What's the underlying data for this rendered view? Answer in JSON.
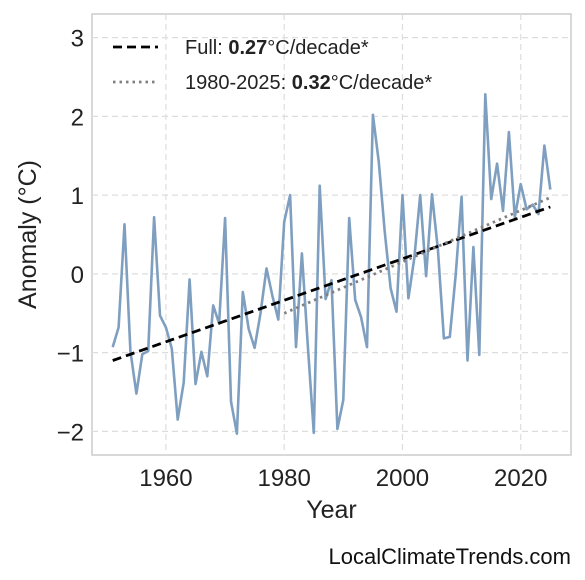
{
  "chart_data": {
    "type": "line",
    "xlabel": "Year",
    "ylabel": "Anomaly (°C)",
    "xlim": [
      1947.5,
      2028.5
    ],
    "ylim": [
      -2.3,
      3.3
    ],
    "xticks": [
      1960,
      1980,
      2000,
      2020
    ],
    "yticks": [
      -2,
      -1,
      0,
      1,
      2,
      3
    ],
    "ytick_labels": [
      "−2",
      "−1",
      "0",
      "1",
      "2",
      "3"
    ],
    "grid": true,
    "legend_position": "top-left",
    "series": [
      {
        "style": "solid",
        "color": "#7f9fc0",
        "x": [
          1951,
          1952,
          1953,
          1954,
          1955,
          1956,
          1957,
          1958,
          1959,
          1960,
          1961,
          1962,
          1963,
          1964,
          1965,
          1966,
          1967,
          1968,
          1969,
          1970,
          1971,
          1972,
          1973,
          1974,
          1975,
          1976,
          1977,
          1978,
          1979,
          1980,
          1981,
          1982,
          1983,
          1984,
          1985,
          1986,
          1987,
          1988,
          1989,
          1990,
          1991,
          1992,
          1993,
          1994,
          1995,
          1996,
          1997,
          1998,
          1999,
          2000,
          2001,
          2002,
          2003,
          2004,
          2005,
          2006,
          2007,
          2008,
          2009,
          2010,
          2011,
          2012,
          2013,
          2014,
          2015,
          2016,
          2017,
          2018,
          2019,
          2020,
          2021,
          2022,
          2023,
          2024,
          2025
        ],
        "y": [
          -0.93,
          -0.68,
          0.63,
          -0.98,
          -1.52,
          -1.02,
          -0.98,
          0.72,
          -0.53,
          -0.68,
          -0.95,
          -1.85,
          -1.38,
          -0.07,
          -1.4,
          -0.99,
          -1.3,
          -0.4,
          -0.63,
          0.71,
          -1.62,
          -2.03,
          -0.23,
          -0.7,
          -0.94,
          -0.5,
          0.07,
          -0.28,
          -0.58,
          0.66,
          1.0,
          -0.93,
          0.26,
          -0.91,
          -2.02,
          1.12,
          -0.32,
          -0.08,
          -1.97,
          -1.6,
          0.71,
          -0.33,
          -0.55,
          -0.93,
          2.02,
          1.42,
          0.54,
          -0.18,
          -0.48,
          1.0,
          -0.31,
          0.2,
          1.0,
          -0.03,
          1.01,
          0.31,
          -0.82,
          -0.8,
          -0.01,
          0.98,
          -1.1,
          0.34,
          -1.03,
          2.28,
          0.95,
          1.4,
          0.8,
          1.8,
          0.72,
          1.14,
          0.82,
          0.88,
          0.76,
          1.63,
          1.07
        ]
      },
      {
        "name": "Full",
        "style": "dashed",
        "color": "#000000",
        "trend_label_prefix": "Full: ",
        "trend_value": "0.27",
        "trend_unit": "°C/decade*",
        "x": [
          1951,
          2025
        ],
        "y": [
          -1.1,
          0.85
        ]
      },
      {
        "name": "1980-2025",
        "style": "dotted",
        "color": "#808080",
        "trend_label_prefix": "1980-2025: ",
        "trend_value": "0.32",
        "trend_unit": "°C/decade*",
        "x": [
          1980,
          2025
        ],
        "y": [
          -0.5,
          0.97
        ]
      }
    ]
  },
  "footer": {
    "source": "LocalClimateTrends.com"
  },
  "colors": {
    "series_line": "#7f9fc0",
    "trend_full": "#000000",
    "trend_recent": "#808080",
    "grid": "#dddddd",
    "frame": "#cccccc"
  }
}
